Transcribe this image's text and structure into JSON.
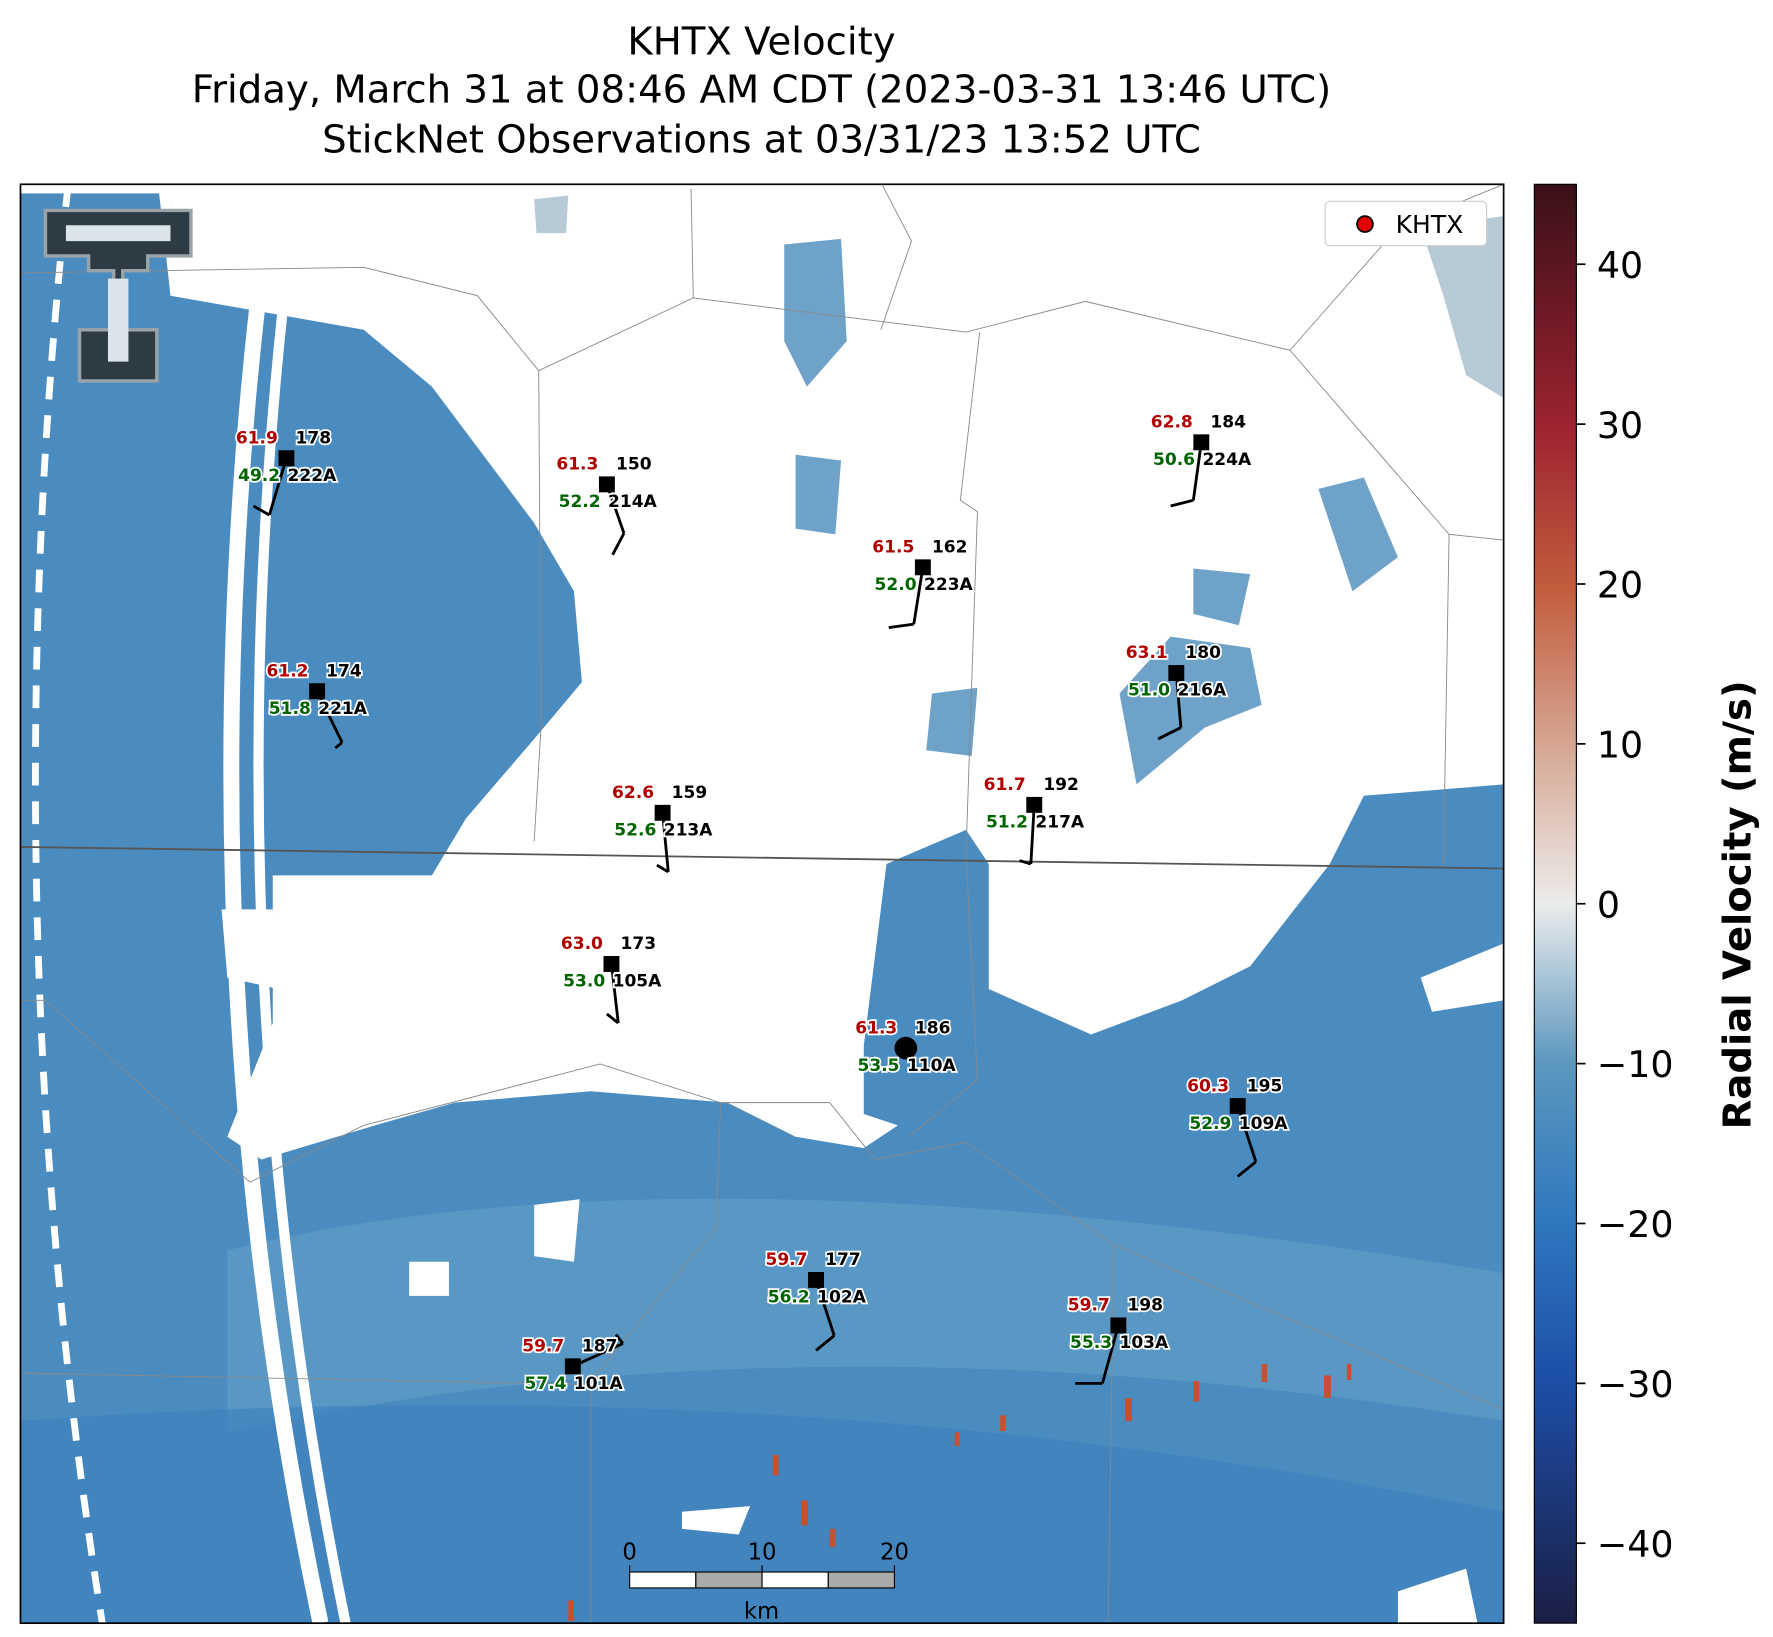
{
  "header": {
    "title_lines": [
      "KHTX Velocity",
      "Friday, March 31 at 08:46 AM CDT (2023-03-31 13:46 UTC)",
      "StickNet Observations at 03/31/23 13:52 UTC"
    ]
  },
  "legend": {
    "label": "KHTX"
  },
  "colorbar": {
    "label": "Radial Velocity (m/s)",
    "lim": [
      -45,
      45
    ],
    "ticks": [
      {
        "value": -40,
        "label": "−40"
      },
      {
        "value": -30,
        "label": "−30"
      },
      {
        "value": -20,
        "label": "−20"
      },
      {
        "value": -10,
        "label": "−10"
      },
      0,
      10,
      20,
      30,
      40
    ]
  },
  "scale_bar": {
    "ticks": [
      0,
      10,
      20
    ],
    "unit": "km"
  },
  "stations": [
    {
      "temperature": "61.9",
      "dewpoint": "49.2",
      "id": "178",
      "name": "222A"
    },
    {
      "temperature": "61.3",
      "dewpoint": "52.2",
      "id": "150",
      "name": "214A"
    },
    {
      "temperature": "61.5",
      "dewpoint": "52.0",
      "id": "162",
      "name": "223A"
    },
    {
      "temperature": "62.8",
      "dewpoint": "50.6",
      "id": "184",
      "name": "224A"
    },
    {
      "temperature": "61.2",
      "dewpoint": "51.8",
      "id": "174",
      "name": "221A"
    },
    {
      "temperature": "63.1",
      "dewpoint": "51.0",
      "id": "180",
      "name": "216A"
    },
    {
      "temperature": "62.6",
      "dewpoint": "52.6",
      "id": "159",
      "name": "213A"
    },
    {
      "temperature": "61.7",
      "dewpoint": "51.2",
      "id": "192",
      "name": "217A"
    },
    {
      "temperature": "63.0",
      "dewpoint": "53.0",
      "id": "173",
      "name": "105A"
    },
    {
      "temperature": "61.3",
      "dewpoint": "53.5",
      "id": "186",
      "name": "110A"
    },
    {
      "temperature": "60.3",
      "dewpoint": "52.9",
      "id": "195",
      "name": "109A"
    },
    {
      "temperature": "59.7",
      "dewpoint": "56.2",
      "id": "177",
      "name": "102A"
    },
    {
      "temperature": "59.7",
      "dewpoint": "55.3",
      "id": "198",
      "name": "103A"
    },
    {
      "temperature": "59.7",
      "dewpoint": "57.4",
      "id": "187",
      "name": "101A"
    }
  ]
}
